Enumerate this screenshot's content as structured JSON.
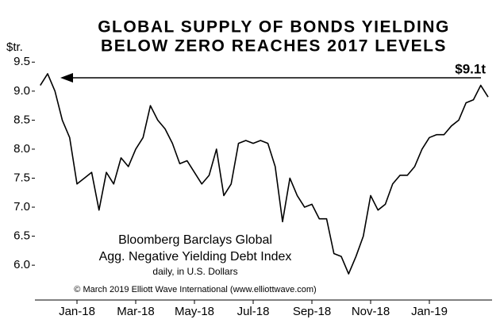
{
  "chart_data": {
    "type": "line",
    "title": [
      "GLOBAL SUPPLY OF BONDS YIELDING",
      "BELOW ZERO REACHES 2017 LEVELS"
    ],
    "y_label": "$tr.",
    "annotation": "$9.1t",
    "notes": [
      "Bloomberg Barclays Global",
      "Agg. Negative Yielding Debt Index",
      "daily, in U.S. Dollars"
    ],
    "source": "© March 2019 Elliott Wave International (www.elliottwave.com)",
    "categories": [
      null,
      null,
      null,
      null,
      null,
      "Jan-18",
      null,
      null,
      null,
      null,
      null,
      null,
      null,
      "Mar-18",
      null,
      null,
      null,
      null,
      null,
      null,
      null,
      "May-18",
      null,
      null,
      null,
      null,
      null,
      null,
      null,
      "Jul-18",
      null,
      null,
      null,
      null,
      null,
      null,
      null,
      "Sep-18",
      null,
      null,
      null,
      null,
      null,
      null,
      null,
      "Nov-18",
      null,
      null,
      null,
      null,
      null,
      null,
      null,
      "Jan-19",
      null,
      null,
      null,
      null,
      null,
      null,
      null,
      null
    ],
    "values": [
      9.1,
      9.3,
      9.0,
      8.5,
      8.2,
      7.4,
      7.5,
      7.6,
      6.95,
      7.6,
      7.4,
      7.85,
      7.7,
      8.0,
      8.2,
      8.75,
      8.5,
      8.35,
      8.1,
      7.75,
      7.8,
      7.6,
      7.4,
      7.55,
      8.0,
      7.2,
      7.4,
      8.1,
      8.15,
      8.1,
      8.15,
      8.1,
      7.7,
      6.75,
      7.5,
      7.2,
      7.0,
      7.05,
      6.8,
      6.8,
      6.2,
      6.15,
      5.85,
      6.15,
      6.5,
      7.2,
      6.95,
      7.05,
      7.4,
      7.55,
      7.55,
      7.7,
      8.0,
      8.2,
      8.25,
      8.25,
      8.4,
      8.5,
      8.8,
      8.85,
      9.1,
      8.9
    ],
    "color": "#000000",
    "ylim": [
      5.4,
      9.75
    ],
    "yticks": [
      {
        "value": 6,
        "label": "6.0"
      },
      6.5,
      {
        "value": 7,
        "label": "7.0"
      },
      7.5,
      {
        "value": 8,
        "label": "8.0"
      },
      8.5,
      {
        "value": 9,
        "label": "9.0"
      },
      9.5
    ]
  }
}
